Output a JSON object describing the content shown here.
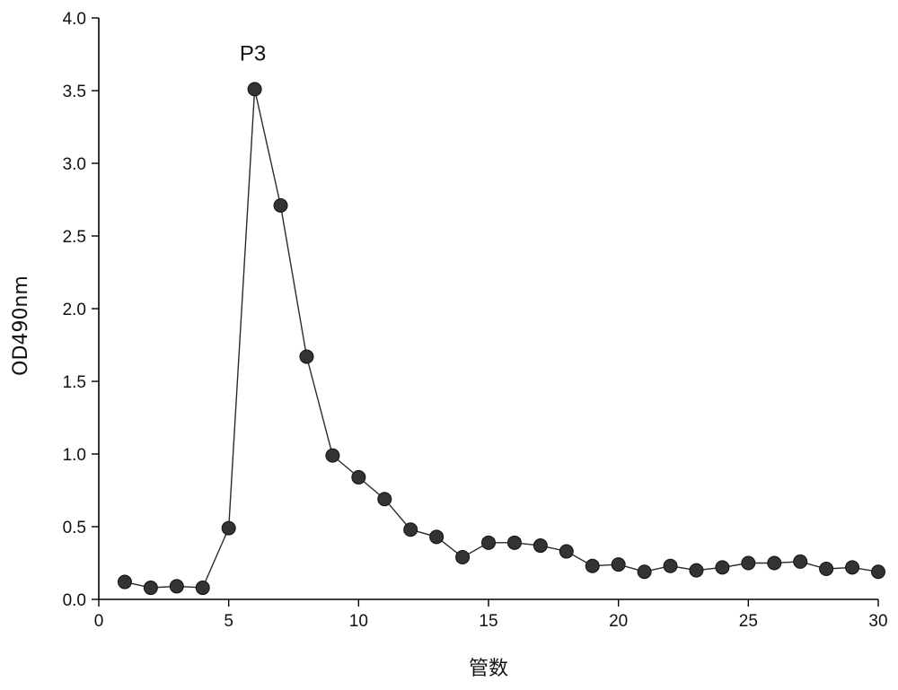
{
  "chart_data": {
    "type": "line",
    "title": "",
    "xlabel": "管数",
    "ylabel": "OD490nm",
    "xlim": [
      0,
      30
    ],
    "ylim": [
      0.0,
      4.0
    ],
    "x_ticks": [
      0,
      5,
      10,
      15,
      20,
      25,
      30
    ],
    "x_tick_labels": [
      "0",
      "5",
      "10",
      "15",
      "20",
      "25",
      "30"
    ],
    "y_ticks": [
      0.0,
      0.5,
      1.0,
      1.5,
      2.0,
      2.5,
      3.0,
      3.5,
      4.0
    ],
    "y_tick_labels": [
      "0.0",
      "0.5",
      "1.0",
      "1.5",
      "2.0",
      "2.5",
      "3.0",
      "3.5",
      "4.0"
    ],
    "grid": false,
    "series": [
      {
        "x": [
          1,
          2,
          3,
          4,
          5,
          6,
          7,
          8,
          9,
          10,
          11,
          12,
          13,
          14,
          15,
          16,
          17,
          18,
          19,
          20,
          21,
          22,
          23,
          24,
          25,
          26,
          27,
          28,
          29,
          30
        ],
        "values": [
          0.12,
          0.08,
          0.09,
          0.08,
          0.49,
          3.51,
          2.71,
          1.67,
          0.99,
          0.84,
          0.69,
          0.48,
          0.43,
          0.29,
          0.39,
          0.39,
          0.37,
          0.33,
          0.23,
          0.24,
          0.19,
          0.23,
          0.2,
          0.22,
          0.25,
          0.25,
          0.26,
          0.21,
          0.22,
          0.19
        ],
        "color": "#333333",
        "marker": "circle"
      }
    ],
    "annotations": [
      {
        "text": "P3",
        "x": 6,
        "y": 3.51
      }
    ]
  }
}
